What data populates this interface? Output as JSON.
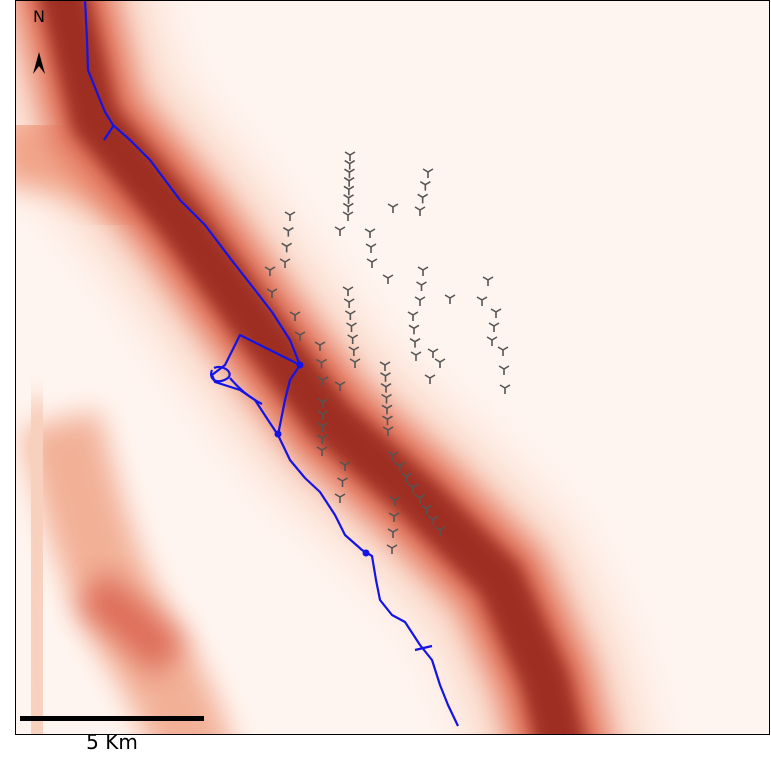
{
  "north_label": "N",
  "scale_bar": {
    "label": "5 Km"
  }
}
